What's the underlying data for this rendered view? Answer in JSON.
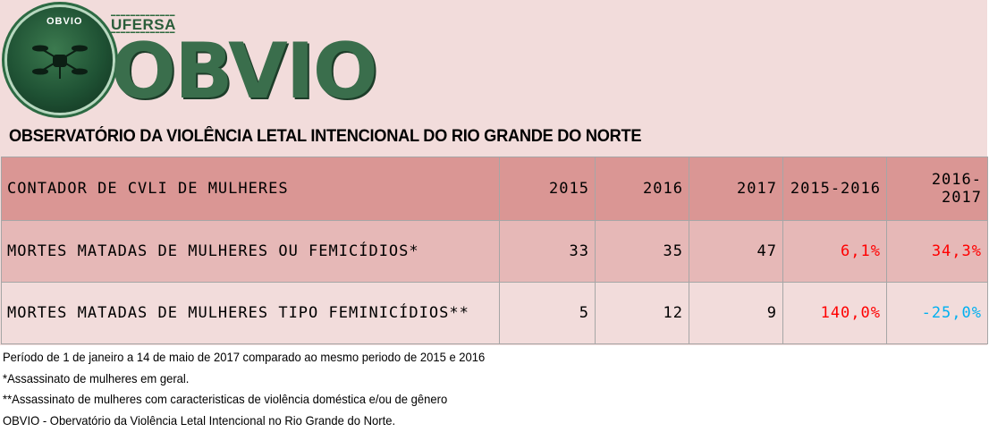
{
  "header": {
    "logo_ring_text": "OBVIO",
    "ufersa_label": "UFERSA",
    "brand": "OBVIO",
    "title": "OBSERVATÓRIO DA VIOLÊNCIA LETAL INTENCIONAL DO RIO GRANDE DO NORTE"
  },
  "table": {
    "columns": [
      "CONTADOR DE CVLI DE MULHERES",
      "2015",
      "2016",
      "2017",
      "2015-2016",
      "2016-2017"
    ],
    "rows": [
      {
        "label": "MORTES MATADAS DE MULHERES OU FEMICÍDIOS*",
        "v2015": "33",
        "v2016": "35",
        "v2017": "47",
        "c1516": "6,1%",
        "c1617": "34,3%"
      },
      {
        "label": "MORTES MATADAS DE MULHERES TIPO FEMINICÍDIOS**",
        "v2015": "5",
        "v2016": "12",
        "v2017": "9",
        "c1516": "140,0%",
        "c1617": "-25,0%"
      }
    ]
  },
  "colors": {
    "header_row": "#da9694",
    "row1": "#e6b8b7",
    "row2": "#f2dcdb",
    "increase": "#ff0000",
    "decrease": "#00b0f0",
    "brand_green": "#3a6e4c"
  },
  "notes": [
    "Período de 1 de janeiro a 14 de maio de 2017 comparado ao mesmo periodo de 2015 e 2016",
    "*Assassinato de mulheres em geral.",
    "**Assassinato de mulheres com caracteristicas de violência doméstica e/ou de gênero",
    "OBVIO - Obervatório da Violência Letal Intencional no Rio Grande do Norte."
  ]
}
